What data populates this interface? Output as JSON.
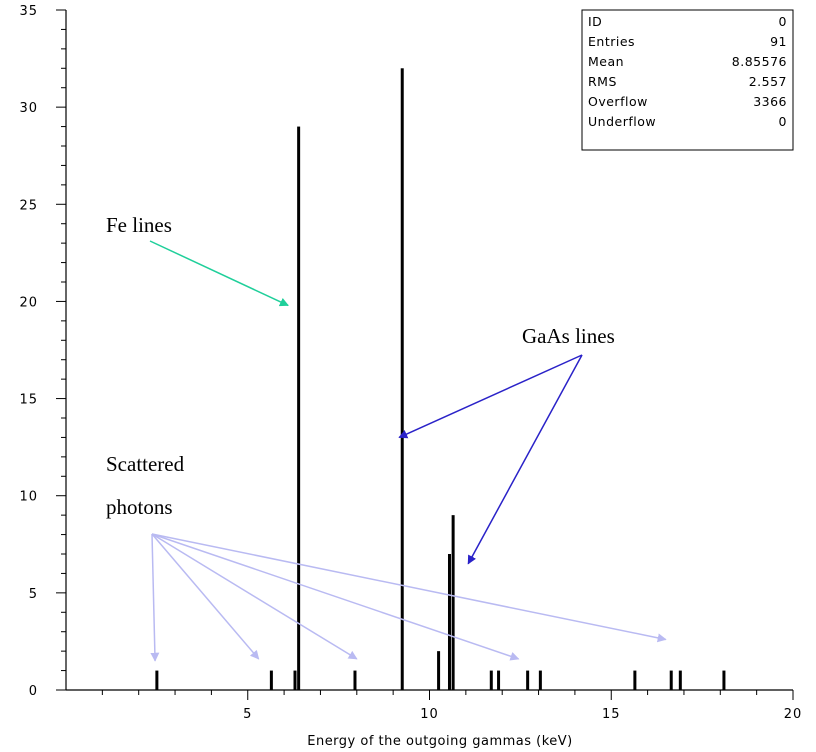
{
  "chart_data": {
    "type": "bar",
    "subtype": "histogram",
    "xlabel": "Energy of the outgoing gammas (keV)",
    "ylabel": "",
    "xlim": [
      0,
      20
    ],
    "ylim": [
      0,
      35
    ],
    "x_ticks": [
      5,
      10,
      15,
      20
    ],
    "y_ticks": [
      0,
      5,
      10,
      15,
      20,
      25,
      30,
      35
    ],
    "x_tick_labels": [
      "5",
      "10",
      "15",
      "20"
    ],
    "y_tick_labels": [
      "0",
      "5",
      "10",
      "15",
      "20",
      "25",
      "30",
      "35"
    ],
    "grid": false,
    "bar_width": 0.08,
    "bins": [
      {
        "x": 2.5,
        "y": 1
      },
      {
        "x": 5.65,
        "y": 1
      },
      {
        "x": 6.3,
        "y": 1
      },
      {
        "x": 6.4,
        "y": 29
      },
      {
        "x": 7.95,
        "y": 1
      },
      {
        "x": 9.25,
        "y": 32
      },
      {
        "x": 10.25,
        "y": 2
      },
      {
        "x": 10.55,
        "y": 7
      },
      {
        "x": 10.65,
        "y": 9
      },
      {
        "x": 11.7,
        "y": 1
      },
      {
        "x": 11.9,
        "y": 1
      },
      {
        "x": 12.7,
        "y": 1
      },
      {
        "x": 13.05,
        "y": 1
      },
      {
        "x": 15.65,
        "y": 1
      },
      {
        "x": 16.65,
        "y": 1
      },
      {
        "x": 16.9,
        "y": 1
      },
      {
        "x": 18.1,
        "y": 1
      }
    ],
    "stats_box": [
      {
        "label": "ID",
        "value": "0"
      },
      {
        "label": "Entries",
        "value": "91"
      },
      {
        "label": "Mean",
        "value": "8.85576"
      },
      {
        "label": "RMS",
        "value": "2.557"
      },
      {
        "label": "Overflow",
        "value": "3366"
      },
      {
        "label": "Underflow",
        "value": "0"
      }
    ],
    "annotations": [
      {
        "text": "Fe lines",
        "color": "#1fcf9a",
        "arrows_to": [
          {
            "x": 6.0,
            "y": 20
          }
        ]
      },
      {
        "text": "GaAs lines",
        "color": "#2a22c8",
        "arrows_to": [
          {
            "x": 9.0,
            "y": 13
          },
          {
            "x": 10.9,
            "y": 6.5
          }
        ]
      },
      {
        "text_lines": [
          "Scattered",
          "photons"
        ],
        "color": "#b9baf2",
        "arrows_to": [
          {
            "x": 2.45,
            "y": 1.5
          },
          {
            "x": 5.3,
            "y": 1.6
          },
          {
            "x": 8.0,
            "y": 1.6
          },
          {
            "x": 12.45,
            "y": 1.6
          },
          {
            "x": 16.5,
            "y": 2.6
          }
        ]
      }
    ]
  }
}
